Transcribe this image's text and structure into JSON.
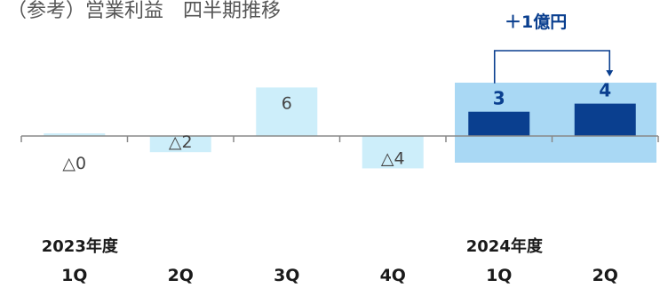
{
  "title": "（参考）営業利益　四半期推移",
  "annotation": "＋1億円",
  "chart_data": {
    "type": "bar",
    "fiscal_years": [
      {
        "label": "2023年度",
        "first_index": 0
      },
      {
        "label": "2024年度",
        "first_index": 4
      }
    ],
    "categories": [
      "1Q",
      "2Q",
      "3Q",
      "4Q",
      "1Q",
      "2Q"
    ],
    "values": [
      0,
      -2,
      6,
      -4,
      3,
      4
    ],
    "data_labels": [
      "△0",
      "△2",
      "6",
      "△4",
      "3",
      "4"
    ],
    "highlight_indices": [
      4,
      5
    ],
    "colors": {
      "bar": "#cdeefa",
      "highlight_bar": "#0a3f8f",
      "highlight_background": "#a9d8f4",
      "axis": "#888888",
      "label": "#444444",
      "highlight_label": "#0a3f8f",
      "annotation": "#0a3f8f"
    }
  }
}
